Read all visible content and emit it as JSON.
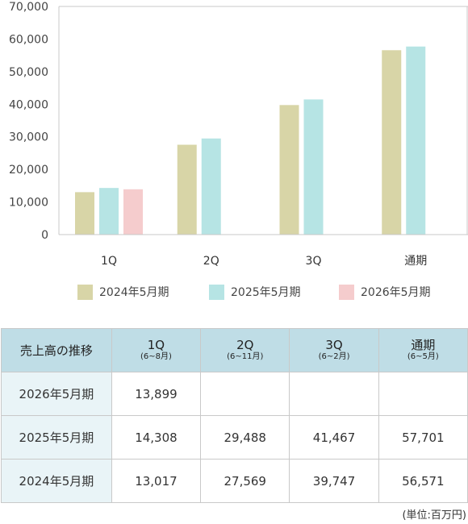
{
  "chart_data": {
    "type": "bar",
    "categories": [
      "1Q",
      "2Q",
      "3Q",
      "通期"
    ],
    "series": [
      {
        "name": "2024年5月期",
        "color": "#d8d5a7",
        "values": [
          13017,
          27569,
          39747,
          56571
        ]
      },
      {
        "name": "2025年5月期",
        "color": "#b6e4e4",
        "values": [
          14308,
          29488,
          41467,
          57701
        ]
      },
      {
        "name": "2026年5月期",
        "color": "#f5cccd",
        "values": [
          13899,
          null,
          null,
          null
        ]
      }
    ],
    "ylim": [
      0,
      70000
    ],
    "yticks": [
      "0",
      "10,000",
      "20,000",
      "30,000",
      "40,000",
      "50,000",
      "60,000",
      "70,000"
    ],
    "category_labels": [
      "1Q",
      "2Q",
      "3Q",
      "通期"
    ],
    "grid": false,
    "legend_position": "bottom"
  },
  "legend": [
    {
      "label": "2024年5月期",
      "color": "#d8d5a7"
    },
    {
      "label": "2025年5月期",
      "color": "#b6e4e4"
    },
    {
      "label": "2026年5月期",
      "color": "#f5cccd"
    }
  ],
  "table": {
    "corner": "売上高の推移",
    "columns": [
      {
        "label": "1Q",
        "period": "(6~8月)"
      },
      {
        "label": "2Q",
        "period": "(6~11月)"
      },
      {
        "label": "3Q",
        "period": "(6~2月)"
      },
      {
        "label": "通期",
        "period": "(6~5月)"
      }
    ],
    "rows": [
      {
        "label": "2026年5月期",
        "values": [
          "13,899",
          "",
          "",
          ""
        ]
      },
      {
        "label": "2025年5月期",
        "values": [
          "14,308",
          "29,488",
          "41,467",
          "57,701"
        ]
      },
      {
        "label": "2024年5月期",
        "values": [
          "13,017",
          "27,569",
          "39,747",
          "56,571"
        ]
      }
    ]
  },
  "unit_note": "(単位:百万円)"
}
